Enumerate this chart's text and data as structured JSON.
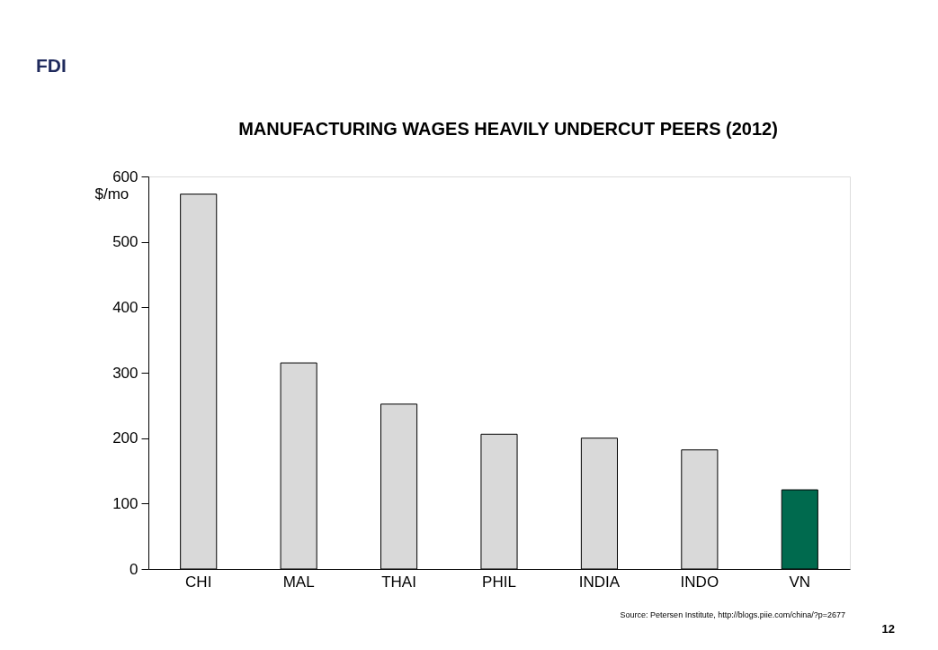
{
  "chart_data": {
    "type": "bar",
    "title": "MANUFACTURING WAGES HEAVILY UNDERCUT PEERS (2012)",
    "ylabel": "$/mo",
    "categories": [
      "CHI",
      "MAL",
      "THAI",
      "PHIL",
      "INDIA",
      "INDO",
      "VN"
    ],
    "values": [
      573,
      315,
      252,
      206,
      200,
      182,
      121
    ],
    "colors": [
      "#d9d9d9",
      "#d9d9d9",
      "#d9d9d9",
      "#d9d9d9",
      "#d9d9d9",
      "#d9d9d9",
      "#006a4e"
    ],
    "ylim": [
      0,
      600
    ],
    "yticks": [
      0,
      100,
      200,
      300,
      400,
      500,
      600
    ],
    "grid": false,
    "annotations": [
      "FDI",
      "Source: Petersen Institute, http://blogs.piie.com/china/?p=2677",
      "12"
    ]
  }
}
